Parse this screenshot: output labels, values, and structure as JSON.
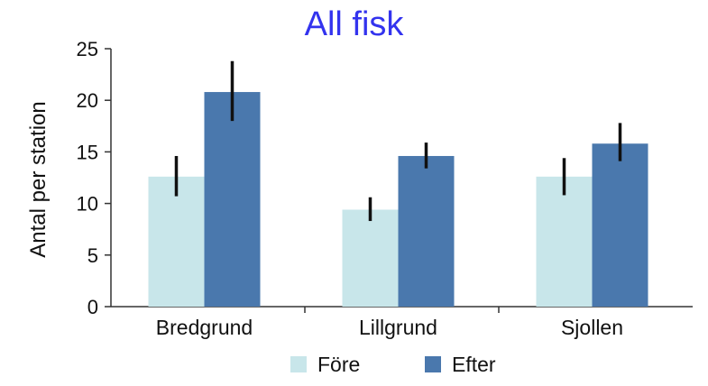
{
  "chart_data": {
    "type": "bar",
    "title": "All fisk",
    "ylabel": "Antal per station",
    "xlabel": "",
    "ylim": [
      0,
      25
    ],
    "yticks": [
      0,
      5,
      10,
      15,
      20,
      25
    ],
    "categories": [
      "Bredgrund",
      "Lillgrund",
      "Sjollen"
    ],
    "series": [
      {
        "name": "Före",
        "color": "#c8e6ea",
        "values": [
          12.6,
          9.4,
          12.6
        ],
        "error_low": [
          10.7,
          8.3,
          10.8
        ],
        "error_high": [
          14.6,
          10.6,
          14.4
        ]
      },
      {
        "name": "Efter",
        "color": "#4a78ad",
        "values": [
          20.8,
          14.6,
          15.8
        ],
        "error_low": [
          18.0,
          13.4,
          14.1
        ],
        "error_high": [
          23.8,
          15.9,
          17.8
        ]
      }
    ],
    "legend_position": "bottom-center",
    "grid": false
  },
  "colors": {
    "title": "#3333ee",
    "axis": "#333333",
    "error_bar": "#111111"
  }
}
